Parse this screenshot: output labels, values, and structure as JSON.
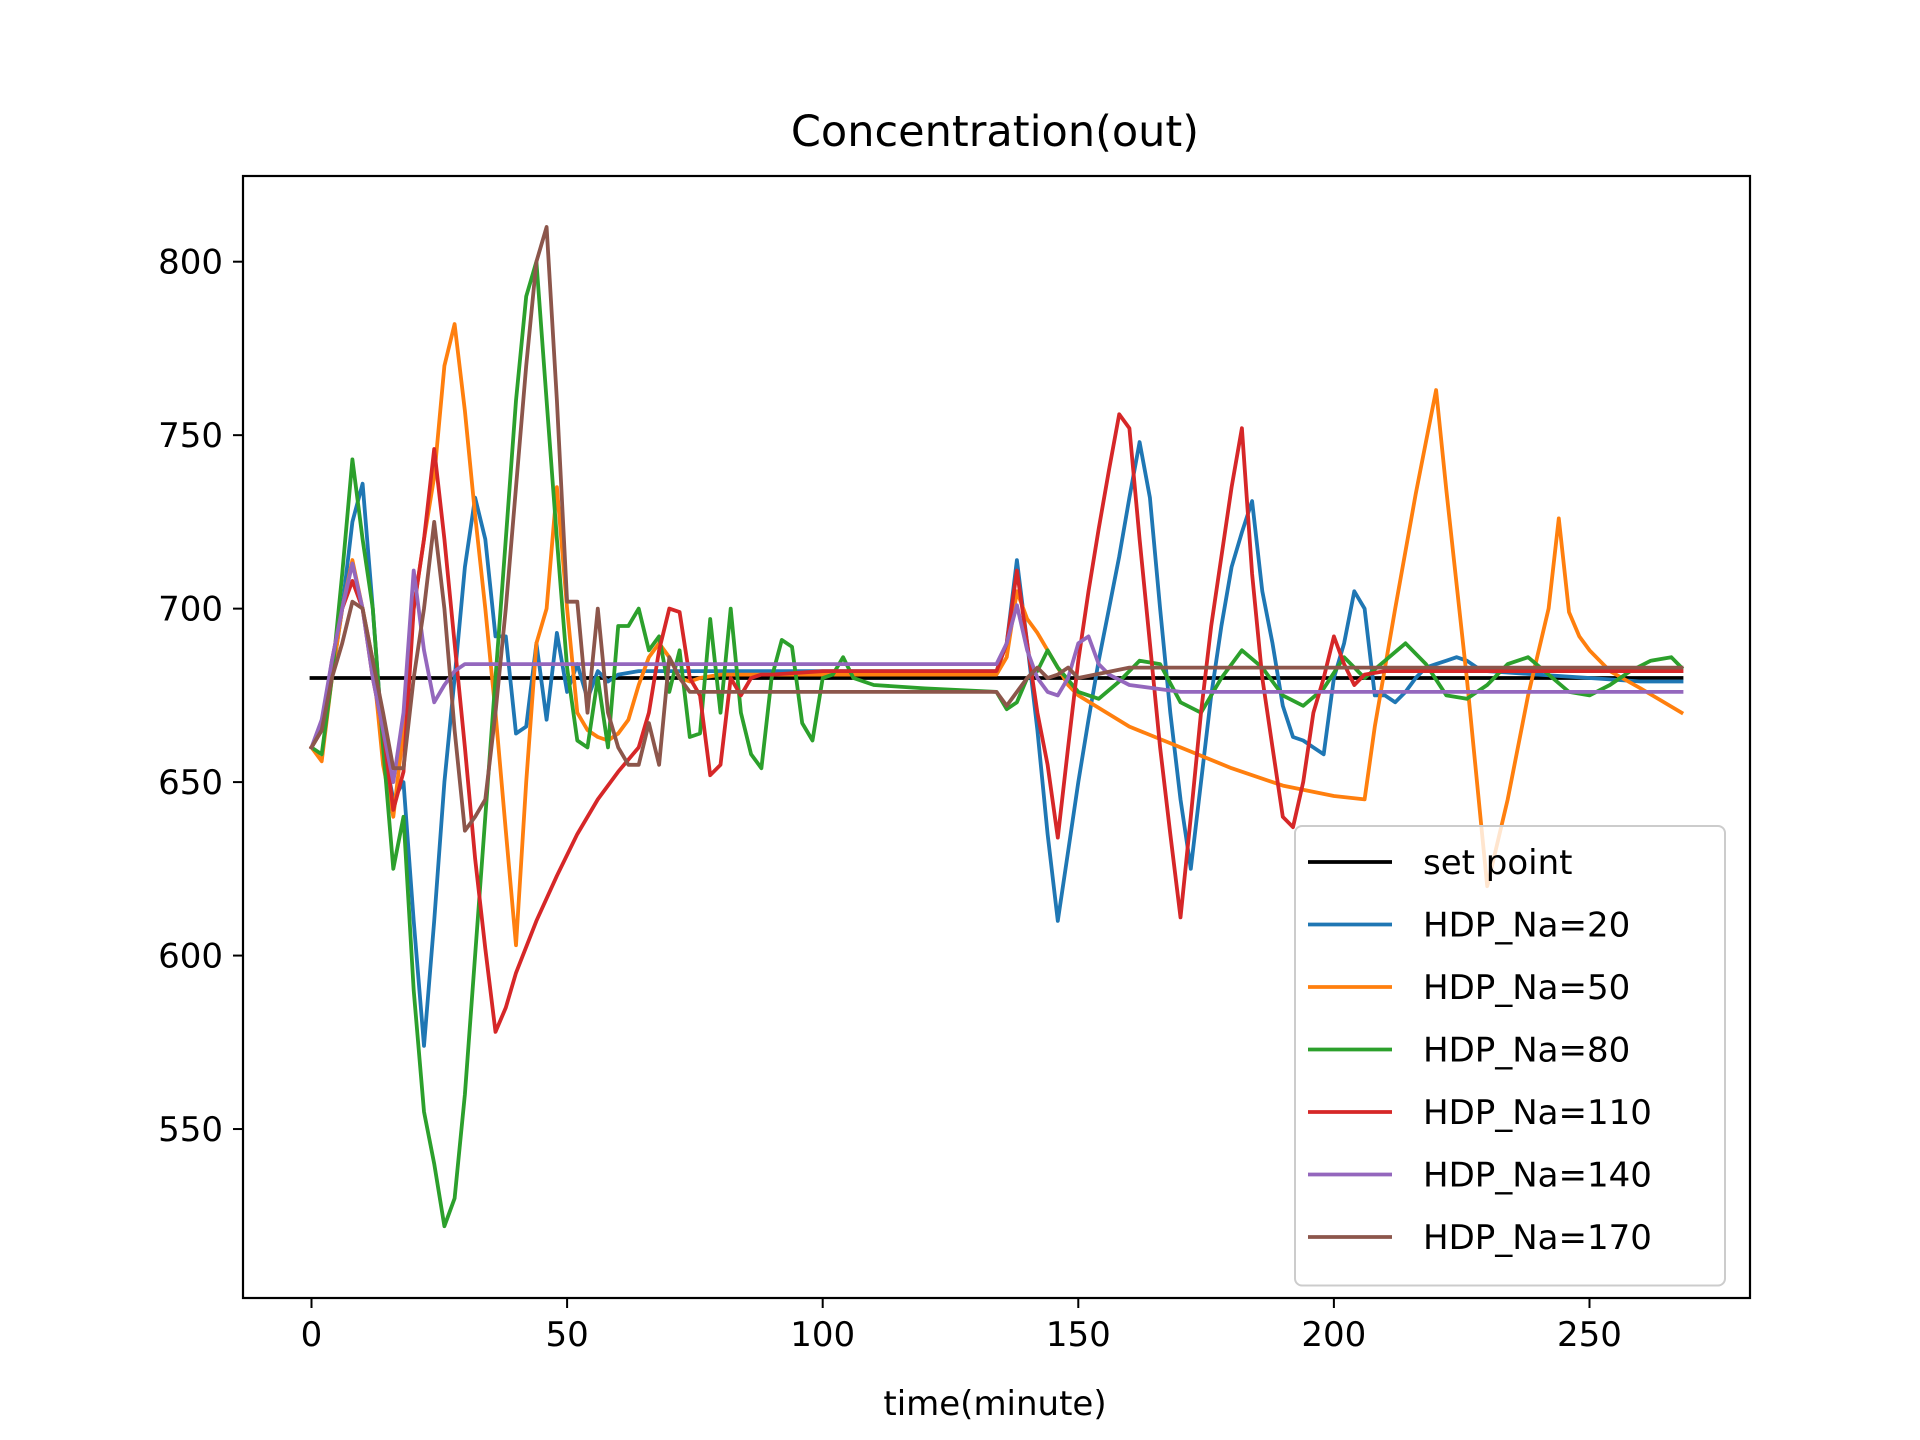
{
  "chart_data": {
    "type": "line",
    "title": "Concentration(out)",
    "xlabel": "time(minute)",
    "ylabel": "",
    "xlim": [
      -13.4,
      281.4
    ],
    "ylim": [
      501.3,
      824.7
    ],
    "xticks": [
      0,
      50,
      100,
      150,
      200,
      250
    ],
    "yticks": [
      550,
      600,
      650,
      700,
      750,
      800
    ],
    "grid": false,
    "legend_position": "lower-right",
    "series": [
      {
        "name": "set point",
        "color": "#000000",
        "x": [
          0,
          268
        ],
        "y": [
          680,
          680
        ]
      },
      {
        "name": "HDP_Na=20",
        "color": "#1f77b4",
        "x": [
          0,
          2,
          4,
          6,
          8,
          10,
          12,
          14,
          16,
          18,
          20,
          22,
          24,
          26,
          28,
          30,
          32,
          34,
          36,
          38,
          40,
          42,
          44,
          46,
          48,
          50,
          52,
          54,
          56,
          58,
          60,
          64,
          70,
          80,
          100,
          120,
          134,
          136,
          138,
          140,
          142,
          144,
          146,
          148,
          150,
          152,
          154,
          156,
          158,
          160,
          162,
          164,
          166,
          168,
          170,
          172,
          174,
          176,
          178,
          180,
          182,
          184,
          186,
          188,
          190,
          192,
          194,
          196,
          198,
          200,
          202,
          204,
          206,
          208,
          210,
          212,
          214,
          216,
          218,
          220,
          222,
          224,
          226,
          228,
          230,
          240,
          250,
          260,
          268
        ],
        "y": [
          660,
          665,
          680,
          700,
          725,
          736,
          700,
          660,
          645,
          650,
          610,
          574,
          610,
          650,
          680,
          712,
          732,
          720,
          692,
          692,
          664,
          666,
          690,
          668,
          693,
          676,
          684,
          674,
          682,
          679,
          681,
          682,
          682,
          682,
          682,
          682,
          682,
          690,
          714,
          690,
          665,
          635,
          610,
          630,
          650,
          668,
          685,
          700,
          715,
          732,
          748,
          732,
          700,
          670,
          645,
          625,
          650,
          675,
          695,
          712,
          722,
          731,
          705,
          690,
          672,
          663,
          662,
          660,
          658,
          680,
          690,
          705,
          700,
          675,
          675,
          673,
          676,
          680,
          683,
          684,
          685,
          686,
          685,
          683,
          682,
          681,
          680,
          679,
          679
        ]
      },
      {
        "name": "HDP_Na=50",
        "color": "#ff7f0e",
        "x": [
          0,
          2,
          4,
          6,
          8,
          10,
          12,
          14,
          16,
          18,
          20,
          22,
          24,
          26,
          28,
          30,
          32,
          34,
          36,
          38,
          40,
          42,
          44,
          46,
          48,
          50,
          52,
          54,
          56,
          58,
          60,
          62,
          64,
          66,
          68,
          70,
          72,
          74,
          76,
          80,
          90,
          100,
          120,
          134,
          136,
          138,
          140,
          142,
          144,
          146,
          148,
          150,
          160,
          170,
          180,
          190,
          200,
          206,
          208,
          212,
          216,
          220,
          222,
          226,
          230,
          234,
          238,
          242,
          244,
          246,
          248,
          250,
          254,
          260,
          268
        ],
        "y": [
          660,
          656,
          680,
          700,
          714,
          700,
          685,
          655,
          640,
          665,
          700,
          720,
          738,
          770,
          782,
          757,
          727,
          700,
          670,
          636,
          603,
          650,
          690,
          700,
          735,
          700,
          670,
          665,
          663,
          662,
          664,
          668,
          678,
          686,
          690,
          686,
          680,
          679,
          680,
          681,
          681,
          681,
          681,
          681,
          686,
          705,
          697,
          693,
          688,
          683,
          678,
          675,
          666,
          660,
          654,
          649,
          646,
          645,
          666,
          700,
          733,
          763,
          734,
          680,
          620,
          645,
          675,
          700,
          726,
          699,
          692,
          688,
          682,
          677,
          670
        ]
      },
      {
        "name": "HDP_Na=80",
        "color": "#2ca02c",
        "x": [
          0,
          2,
          4,
          6,
          8,
          10,
          12,
          14,
          16,
          18,
          20,
          22,
          24,
          26,
          28,
          30,
          32,
          34,
          36,
          38,
          40,
          42,
          44,
          46,
          48,
          50,
          52,
          54,
          56,
          58,
          60,
          62,
          64,
          66,
          68,
          70,
          72,
          74,
          76,
          78,
          80,
          82,
          84,
          86,
          88,
          90,
          92,
          94,
          96,
          98,
          100,
          102,
          104,
          106,
          110,
          120,
          134,
          136,
          138,
          140,
          142,
          144,
          146,
          150,
          154,
          158,
          162,
          166,
          170,
          174,
          178,
          182,
          186,
          190,
          194,
          198,
          202,
          206,
          210,
          214,
          218,
          222,
          226,
          230,
          234,
          238,
          242,
          246,
          250,
          254,
          258,
          262,
          266,
          268
        ],
        "y": [
          660,
          658,
          680,
          710,
          743,
          720,
          700,
          660,
          625,
          640,
          590,
          555,
          540,
          522,
          530,
          560,
          600,
          640,
          680,
          720,
          760,
          790,
          800,
          760,
          720,
          683,
          662,
          660,
          680,
          660,
          695,
          695,
          700,
          688,
          692,
          676,
          688,
          663,
          664,
          697,
          670,
          700,
          670,
          658,
          654,
          680,
          691,
          689,
          667,
          662,
          680,
          681,
          686,
          680,
          678,
          677,
          676,
          671,
          673,
          680,
          682,
          688,
          683,
          676,
          674,
          679,
          685,
          684,
          673,
          670,
          680,
          688,
          683,
          675,
          672,
          677,
          686,
          680,
          685,
          690,
          684,
          675,
          674,
          678,
          684,
          686,
          681,
          676,
          675,
          678,
          682,
          685,
          686,
          683
        ]
      },
      {
        "name": "HDP_Na=110",
        "color": "#d62728",
        "x": [
          0,
          2,
          4,
          6,
          8,
          10,
          12,
          14,
          16,
          18,
          20,
          22,
          24,
          26,
          28,
          30,
          32,
          34,
          36,
          38,
          40,
          44,
          48,
          52,
          56,
          60,
          64,
          66,
          68,
          70,
          72,
          74,
          76,
          78,
          80,
          82,
          84,
          86,
          88,
          90,
          100,
          110,
          120,
          134,
          136,
          138,
          140,
          142,
          144,
          146,
          148,
          150,
          152,
          154,
          156,
          158,
          160,
          162,
          164,
          166,
          168,
          170,
          172,
          174,
          176,
          178,
          180,
          182,
          184,
          186,
          188,
          190,
          192,
          194,
          196,
          198,
          200,
          202,
          204,
          206,
          210,
          220,
          230,
          240,
          250,
          268
        ],
        "y": [
          660,
          665,
          685,
          700,
          708,
          700,
          680,
          665,
          642,
          653,
          700,
          720,
          746,
          720,
          690,
          660,
          628,
          602,
          578,
          585,
          595,
          610,
          623,
          635,
          645,
          653,
          660,
          670,
          688,
          700,
          699,
          680,
          675,
          652,
          655,
          680,
          675,
          680,
          681,
          681,
          682,
          682,
          682,
          682,
          690,
          711,
          690,
          670,
          655,
          634,
          660,
          685,
          705,
          723,
          740,
          756,
          752,
          720,
          690,
          660,
          635,
          611,
          640,
          670,
          695,
          715,
          735,
          752,
          710,
          680,
          660,
          640,
          637,
          650,
          670,
          680,
          692,
          684,
          678,
          681,
          682,
          682,
          682,
          682,
          682,
          682
        ]
      },
      {
        "name": "HDP_Na=140",
        "color": "#9467bd",
        "x": [
          0,
          2,
          4,
          6,
          8,
          10,
          12,
          14,
          16,
          18,
          20,
          22,
          24,
          26,
          28,
          30,
          34,
          40,
          60,
          80,
          100,
          120,
          134,
          136,
          138,
          140,
          142,
          144,
          146,
          148,
          150,
          152,
          154,
          156,
          160,
          170,
          180,
          200,
          220,
          240,
          268
        ],
        "y": [
          660,
          668,
          685,
          700,
          713,
          700,
          680,
          665,
          650,
          670,
          711,
          688,
          673,
          678,
          682,
          684,
          684,
          684,
          684,
          684,
          684,
          684,
          684,
          690,
          701,
          688,
          680,
          676,
          675,
          680,
          690,
          692,
          684,
          681,
          678,
          676,
          676,
          676,
          676,
          676,
          676
        ]
      },
      {
        "name": "HDP_Na=170",
        "color": "#8c564b",
        "x": [
          0,
          2,
          4,
          6,
          8,
          10,
          12,
          14,
          16,
          18,
          20,
          22,
          24,
          26,
          28,
          30,
          32,
          34,
          36,
          38,
          40,
          42,
          44,
          46,
          48,
          50,
          52,
          54,
          56,
          58,
          60,
          62,
          64,
          66,
          68,
          70,
          72,
          74,
          76,
          80,
          100,
          120,
          134,
          136,
          138,
          140,
          142,
          144,
          146,
          148,
          150,
          160,
          180,
          200,
          220,
          240,
          268
        ],
        "y": [
          660,
          665,
          680,
          690,
          702,
          700,
          685,
          670,
          654,
          654,
          680,
          700,
          725,
          700,
          665,
          636,
          640,
          645,
          670,
          700,
          735,
          770,
          800,
          810,
          760,
          702,
          702,
          670,
          700,
          670,
          660,
          655,
          655,
          667,
          655,
          686,
          680,
          676,
          676,
          676,
          676,
          676,
          676,
          672,
          676,
          680,
          683,
          680,
          681,
          683,
          680,
          683,
          683,
          683,
          683,
          683,
          683
        ]
      }
    ]
  }
}
